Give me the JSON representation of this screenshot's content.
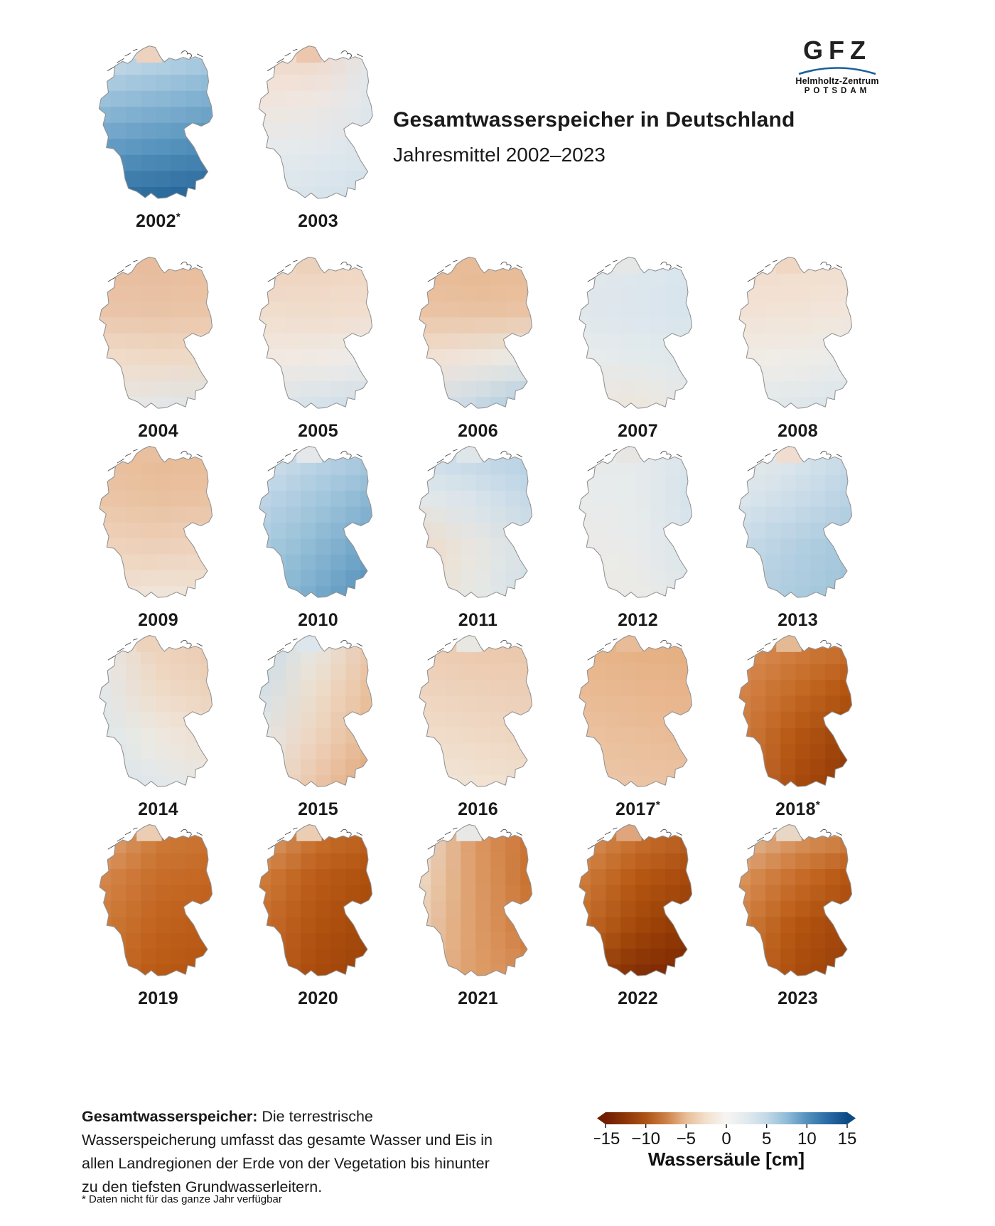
{
  "header": {
    "title": "Gesamtwasserspeicher in Deutschland",
    "subtitle": "Jahresmittel 2002–2023"
  },
  "logo": {
    "acronym": "GFZ",
    "line1": "Helmholtz-Zentrum",
    "line2": "Potsdam",
    "arc_color": "#1b5f9e"
  },
  "legend": {
    "title": "Wassersäule [cm]",
    "ticks": [
      "−15",
      "−10",
      "−5",
      "0",
      "5",
      "10",
      "15"
    ],
    "gradient": [
      "#701d02",
      "#8d3607",
      "#ad5417",
      "#cc8045",
      "#e7bd97",
      "#f3e0cd",
      "#f7f5f3",
      "#e2eaee",
      "#c3d9e7",
      "#8fbcd8",
      "#5390bd",
      "#2a6ca6",
      "#0c4a86"
    ]
  },
  "footer": {
    "lead": "Gesamtwasserspeicher:",
    "body": " Die terrestrische Wasserspeicherung umfasst das gesamte Wasser und Eis in allen Landregionen der Erde von der Vegetation bis hinunter zu den tiefsten Grundwasserleitern.",
    "footnote": "* Daten nicht für das ganze Jahr verfügbar"
  },
  "years": [
    {
      "label": "2002",
      "asterisk": true,
      "tip": "#edd2bf",
      "grid": [
        [
          "#dfe8ee",
          "#cde0ec",
          "#bcd6e8"
        ],
        [
          "#9fc4dc",
          "#8fbad6",
          "#7fb0d0"
        ],
        [
          "#639cc3",
          "#5592bd",
          "#4889b6"
        ],
        [
          "#2f71a4",
          "#266699",
          "#1f5c90"
        ]
      ]
    },
    {
      "label": "2003",
      "asterisk": false,
      "tip": "#ecc7ae",
      "grid": [
        [
          "#f0d6c5",
          "#efd3c0",
          "#e6e8ea"
        ],
        [
          "#f2e4da",
          "#f0e6e0",
          "#dee7ed"
        ],
        [
          "#e7ebed",
          "#e2e9ed",
          "#d9e4ec"
        ],
        [
          "#dce6ec",
          "#d6e3eb",
          "#d0e0ea"
        ]
      ]
    },
    {
      "label": "2004",
      "asterisk": false,
      "tip": "#e8bd9e",
      "grid": [
        [
          "#e8bd9e",
          "#e7bb9a",
          "#e8bd9d"
        ],
        [
          "#eac4a8",
          "#e9c2a4",
          "#eac4a6"
        ],
        [
          "#f0dccb",
          "#efdac7",
          "#efdbc9"
        ],
        [
          "#ebeae5",
          "#e2e8eb",
          "#d8e4eb"
        ]
      ]
    },
    {
      "label": "2005",
      "asterisk": false,
      "tip": "#ecd1bb",
      "grid": [
        [
          "#edd0b9",
          "#eed2bd",
          "#efd5c1"
        ],
        [
          "#f0dccb",
          "#f0dbc9",
          "#f1ddcd"
        ],
        [
          "#f2e9e0",
          "#f0eae4",
          "#edecea"
        ],
        [
          "#dde7ed",
          "#d2e1ea",
          "#c6dae7"
        ]
      ]
    },
    {
      "label": "2006",
      "asterisk": false,
      "tip": "#e8bc99",
      "grid": [
        [
          "#e7b992",
          "#e6b78f",
          "#e7b992"
        ],
        [
          "#eac2a2",
          "#e9c09e",
          "#eac1a1"
        ],
        [
          "#f1e0d1",
          "#efe7dd",
          "#e8eceb"
        ],
        [
          "#d8e4eb",
          "#c3d7e6",
          "#9cc2d9"
        ]
      ]
    },
    {
      "label": "2007",
      "asterisk": false,
      "tip": "#e5e7e6",
      "grid": [
        [
          "#e2e8ec",
          "#dee7ed",
          "#d8e5ed"
        ],
        [
          "#e0e8ec",
          "#dce6ed",
          "#d6e4ec"
        ],
        [
          "#e7ebeb",
          "#e4eaec",
          "#dee6ec"
        ],
        [
          "#eee3d7",
          "#efe5da",
          "#e9eae6"
        ]
      ]
    },
    {
      "label": "2008",
      "asterisk": false,
      "tip": "#efd7c4",
      "grid": [
        [
          "#f0d9c7",
          "#f0dbc9",
          "#f1ddcd"
        ],
        [
          "#f2e2d4",
          "#f2e3d6",
          "#f2e5d9"
        ],
        [
          "#f1ebe4",
          "#efece8",
          "#e9eceb"
        ],
        [
          "#e3eaed",
          "#dde7ec",
          "#d4e2ea"
        ]
      ]
    },
    {
      "label": "2009",
      "asterisk": false,
      "tip": "#e8bf9f",
      "grid": [
        [
          "#e9c0a0",
          "#e7b992",
          "#e8bb96"
        ],
        [
          "#ebc5a7",
          "#e9c09e",
          "#eac2a2"
        ],
        [
          "#eed4bf",
          "#edd0b9",
          "#eed5c0"
        ],
        [
          "#f0e0d2",
          "#f1e7de",
          "#f0e5da"
        ]
      ]
    },
    {
      "label": "2010",
      "asterisk": false,
      "tip": "#e4e8eb",
      "grid": [
        [
          "#dbe5ec",
          "#c6d9e8",
          "#b3cfe2"
        ],
        [
          "#c2d7e7",
          "#a6c9de",
          "#8ab6d2"
        ],
        [
          "#abcce0",
          "#8cb8d2",
          "#66a0c5"
        ],
        [
          "#9ac3da",
          "#74a9ca",
          "#4b89b6"
        ]
      ]
    },
    {
      "label": "2011",
      "asterisk": false,
      "tip": "#dfe6ea",
      "grid": [
        [
          "#c9dde9",
          "#bcd3e5",
          "#aecce0"
        ],
        [
          "#e4e9ea",
          "#d7e3eb",
          "#c2d7e6"
        ],
        [
          "#efd8c5",
          "#e9e6e0",
          "#d4e1ea"
        ],
        [
          "#f0dccb",
          "#e6eae6",
          "#cddee9"
        ]
      ]
    },
    {
      "label": "2012",
      "asterisk": false,
      "tip": "#e7e6e3",
      "grid": [
        [
          "#e9eae8",
          "#e5eaeb",
          "#d9e4ec"
        ],
        [
          "#e9ebea",
          "#e6ebec",
          "#d5e2eb"
        ],
        [
          "#eceae6",
          "#e9ebea",
          "#d9e4ea"
        ],
        [
          "#eee8e1",
          "#ebeae6",
          "#e0e7ea"
        ]
      ]
    },
    {
      "label": "2013",
      "asterisk": false,
      "tip": "#f0ddd0",
      "grid": [
        [
          "#ede9e4",
          "#e0e8ed",
          "#cbdce9"
        ],
        [
          "#dde7ec",
          "#cddee9",
          "#b7d1e3"
        ],
        [
          "#c7dae7",
          "#b3cfe2",
          "#a2c5db"
        ],
        [
          "#bdd4e5",
          "#abcbde",
          "#9cc2d9"
        ]
      ]
    },
    {
      "label": "2014",
      "asterisk": false,
      "tip": "#edd2bc",
      "grid": [
        [
          "#e8ebec",
          "#edcfb7",
          "#ebc7ab"
        ],
        [
          "#e2e9ec",
          "#efdac7",
          "#ecd0b8"
        ],
        [
          "#dce6eb",
          "#eeeae2",
          "#f0ddcc"
        ],
        [
          "#d6e3ea",
          "#dfe7ec",
          "#eaebe6"
        ]
      ]
    },
    {
      "label": "2015",
      "asterisk": false,
      "tip": "#dce6ec",
      "grid": [
        [
          "#c3d8e7",
          "#e6e9e8",
          "#ecc9ae"
        ],
        [
          "#cfdfe9",
          "#eee0d0",
          "#e9bd99"
        ],
        [
          "#e4e9ea",
          "#eed3bd",
          "#e5b489"
        ],
        [
          "#eee5da",
          "#eac4a6",
          "#df9f6f"
        ]
      ]
    },
    {
      "label": "2016",
      "asterisk": false,
      "tip": "#e9e7e2",
      "grid": [
        [
          "#ecc9ae",
          "#ebc6aa",
          "#ebc5a8"
        ],
        [
          "#eed3be",
          "#edcfb7",
          "#eccdb4"
        ],
        [
          "#f0decd",
          "#efd9c6",
          "#eed5c0"
        ],
        [
          "#f2e8df",
          "#f1e3d5",
          "#f0dfd0"
        ]
      ]
    },
    {
      "label": "2017",
      "asterisk": true,
      "tip": "#e8bc98",
      "grid": [
        [
          "#e7b288",
          "#e5ae81",
          "#e4ab7c"
        ],
        [
          "#e9ba94",
          "#e8b68d",
          "#e7b388"
        ],
        [
          "#ebc2a1",
          "#eabe9b",
          "#e9bb96"
        ],
        [
          "#ecc9ad",
          "#ebc5a7",
          "#eac2a1"
        ]
      ]
    },
    {
      "label": "2018",
      "asterisk": true,
      "tip": "#e4ba95",
      "grid": [
        [
          "#dd9965",
          "#d5854a",
          "#ce7837"
        ],
        [
          "#d5864c",
          "#c66d28",
          "#b3540f"
        ],
        [
          "#d07e43",
          "#b55611",
          "#97400b"
        ],
        [
          "#cd7a40",
          "#a84a0e",
          "#8a3404"
        ]
      ]
    },
    {
      "label": "2019",
      "asterisk": false,
      "tip": "#eacdb3",
      "grid": [
        [
          "#e6bd9c",
          "#d0813f",
          "#cc7735"
        ],
        [
          "#d68a4f",
          "#c76e2b",
          "#c36723"
        ],
        [
          "#cf7c3c",
          "#c0621d",
          "#b95a16"
        ],
        [
          "#c97231",
          "#b85813",
          "#b05010"
        ]
      ]
    },
    {
      "label": "2020",
      "asterisk": false,
      "tip": "#eacdb3",
      "grid": [
        [
          "#e3b693",
          "#cd7a38",
          "#c36722"
        ],
        [
          "#d0803f",
          "#bc5d18",
          "#ad4e0d"
        ],
        [
          "#c86f2d",
          "#b05110",
          "#9f450a"
        ],
        [
          "#c16523",
          "#a84a0c",
          "#9a4008"
        ]
      ]
    },
    {
      "label": "2021",
      "asterisk": false,
      "tip": "#e8e8e6",
      "grid": [
        [
          "#e9e8e4",
          "#dc9660",
          "#c96f2e"
        ],
        [
          "#eeddcb",
          "#dd9b66",
          "#c76d2b"
        ],
        [
          "#ecd0b8",
          "#dd9c68",
          "#cc7635"
        ],
        [
          "#e8c2a2",
          "#dd9c69",
          "#d5894e"
        ]
      ]
    },
    {
      "label": "2022",
      "asterisk": false,
      "tip": "#dfa57c",
      "grid": [
        [
          "#dfa273",
          "#cf7c3d",
          "#bf6526"
        ],
        [
          "#d08140",
          "#b95a14",
          "#a4490c"
        ],
        [
          "#c66e2b",
          "#a34708",
          "#8c3504"
        ],
        [
          "#9c430a",
          "#802c04",
          "#752302"
        ]
      ]
    },
    {
      "label": "2023",
      "asterisk": false,
      "tip": "#e9d7c6",
      "grid": [
        [
          "#e7d6c5",
          "#e0a97c",
          "#d99257"
        ],
        [
          "#db9760",
          "#c96f2c",
          "#b4540f"
        ],
        [
          "#d08040",
          "#b4550f",
          "#9c420a"
        ],
        [
          "#c76f2e",
          "#a94c0e",
          "#943c08"
        ]
      ]
    }
  ],
  "chart_data": {
    "type": "heatmap",
    "subtype": "choropleth-small-multiples",
    "title": "Gesamtwasserspeicher in Deutschland",
    "subtitle": "Jahresmittel 2002–2023",
    "unit": "Wassersäule [cm]",
    "colorbar_range": [
      -15,
      15
    ],
    "colorbar_ticks": [
      -15,
      -10,
      -5,
      0,
      5,
      10,
      15
    ],
    "legend_position": "bottom-right",
    "years": [
      {
        "year": 2002,
        "partial_year": true,
        "approx_mean_anomaly_cm": 9
      },
      {
        "year": 2003,
        "partial_year": false,
        "approx_mean_anomaly_cm": 0
      },
      {
        "year": 2004,
        "partial_year": false,
        "approx_mean_anomaly_cm": -2
      },
      {
        "year": 2005,
        "partial_year": false,
        "approx_mean_anomaly_cm": -1.5
      },
      {
        "year": 2006,
        "partial_year": false,
        "approx_mean_anomaly_cm": -1
      },
      {
        "year": 2007,
        "partial_year": false,
        "approx_mean_anomaly_cm": 1.5
      },
      {
        "year": 2008,
        "partial_year": false,
        "approx_mean_anomaly_cm": -0.5
      },
      {
        "year": 2009,
        "partial_year": false,
        "approx_mean_anomaly_cm": -3
      },
      {
        "year": 2010,
        "partial_year": false,
        "approx_mean_anomaly_cm": 5
      },
      {
        "year": 2011,
        "partial_year": false,
        "approx_mean_anomaly_cm": 0.5
      },
      {
        "year": 2012,
        "partial_year": false,
        "approx_mean_anomaly_cm": 0.5
      },
      {
        "year": 2013,
        "partial_year": false,
        "approx_mean_anomaly_cm": 4
      },
      {
        "year": 2014,
        "partial_year": false,
        "approx_mean_anomaly_cm": -1
      },
      {
        "year": 2015,
        "partial_year": false,
        "approx_mean_anomaly_cm": -3
      },
      {
        "year": 2016,
        "partial_year": false,
        "approx_mean_anomaly_cm": -2
      },
      {
        "year": 2017,
        "partial_year": true,
        "approx_mean_anomaly_cm": -4
      },
      {
        "year": 2018,
        "partial_year": true,
        "approx_mean_anomaly_cm": -8.5
      },
      {
        "year": 2019,
        "partial_year": false,
        "approx_mean_anomaly_cm": -7.5
      },
      {
        "year": 2020,
        "partial_year": false,
        "approx_mean_anomaly_cm": -8.5
      },
      {
        "year": 2021,
        "partial_year": false,
        "approx_mean_anomaly_cm": -5
      },
      {
        "year": 2022,
        "partial_year": false,
        "approx_mean_anomaly_cm": -11
      },
      {
        "year": 2023,
        "partial_year": false,
        "approx_mean_anomaly_cm": -9
      }
    ],
    "notes": "anomaly values estimated from map colors; * = Daten nicht für das ganze Jahr verfügbar"
  }
}
